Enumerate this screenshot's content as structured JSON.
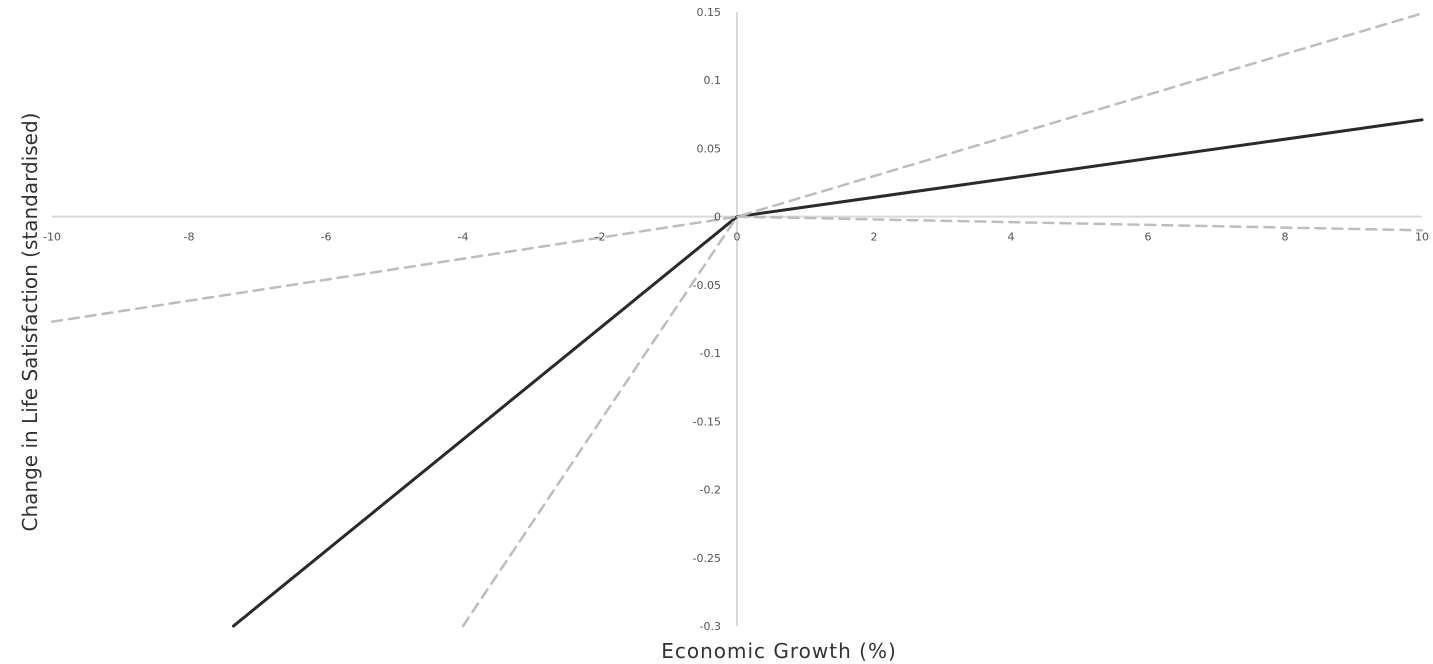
{
  "chart_data": {
    "type": "line",
    "title": "",
    "xlabel": "Economic Growth (%)",
    "ylabel": "Change in Life Satisfaction (standardised)",
    "xlim": [
      -10,
      10
    ],
    "ylim": [
      -0.3,
      0.15
    ],
    "x_ticks": [
      -10,
      -8,
      -6,
      -4,
      -2,
      0,
      2,
      4,
      6,
      8,
      10
    ],
    "y_ticks": [
      -0.3,
      -0.25,
      -0.2,
      -0.15,
      -0.1,
      -0.05,
      0,
      0.05,
      0.1,
      0.15
    ],
    "x_tick_labels": [
      "-10",
      "-8",
      "-6",
      "-4",
      "-2",
      "0",
      "2",
      "4",
      "6",
      "8",
      "10"
    ],
    "y_tick_labels": [
      "-0.3",
      "-0.25",
      "-0.2",
      "-0.15",
      "-0.1",
      "-0.05",
      "0",
      "0.05",
      "0.1",
      "0.15"
    ],
    "grid": false,
    "legend": "none",
    "series": [
      {
        "style": "solid",
        "color": "#2a2a2a",
        "points": [
          [
            -7.35,
            -0.3
          ],
          [
            0,
            0
          ],
          [
            10,
            0.071
          ]
        ]
      },
      {
        "style": "dashed",
        "color": "#bdbdbd",
        "points": [
          [
            -10,
            -0.077
          ],
          [
            0,
            0
          ],
          [
            10,
            0.149
          ]
        ]
      },
      {
        "style": "dashed",
        "color": "#bdbdbd",
        "points": [
          [
            -4.0,
            -0.3
          ],
          [
            0,
            0
          ],
          [
            10,
            -0.01
          ]
        ]
      }
    ],
    "colors": {
      "axis": "#d9d9d9",
      "tick_text": "#555555",
      "axis_title": "#333333"
    }
  }
}
